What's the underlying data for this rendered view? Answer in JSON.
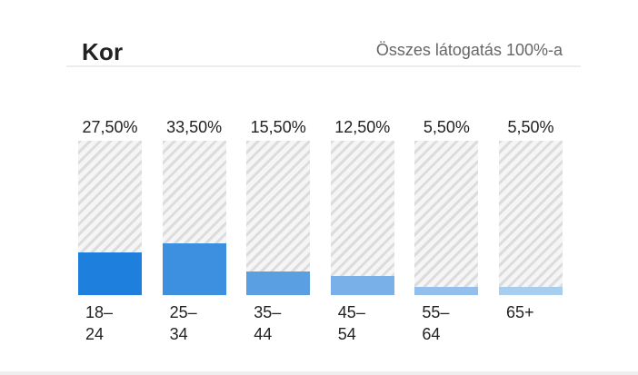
{
  "header": {
    "title": "Kor",
    "subtitle": "Összes látogatás 100%-a"
  },
  "chart_data": {
    "type": "bar",
    "title": "Kor",
    "subtitle": "Összes látogatás 100%-a",
    "categories": [
      "18–24",
      "25–34",
      "35–44",
      "45–54",
      "55–64",
      "65+"
    ],
    "values": [
      27.5,
      33.5,
      15.5,
      12.5,
      5.5,
      5.5
    ],
    "value_labels": [
      "27,50%",
      "33,50%",
      "15,50%",
      "12,50%",
      "5,50%",
      "5,50%"
    ],
    "ylim": [
      0,
      100
    ],
    "unit": "%",
    "grid": false,
    "legend": "none",
    "colors": [
      "#1f7fdc",
      "#3d8fdf",
      "#5b9fe3",
      "#7ab0e8",
      "#93bfec",
      "#a8cdef"
    ]
  }
}
